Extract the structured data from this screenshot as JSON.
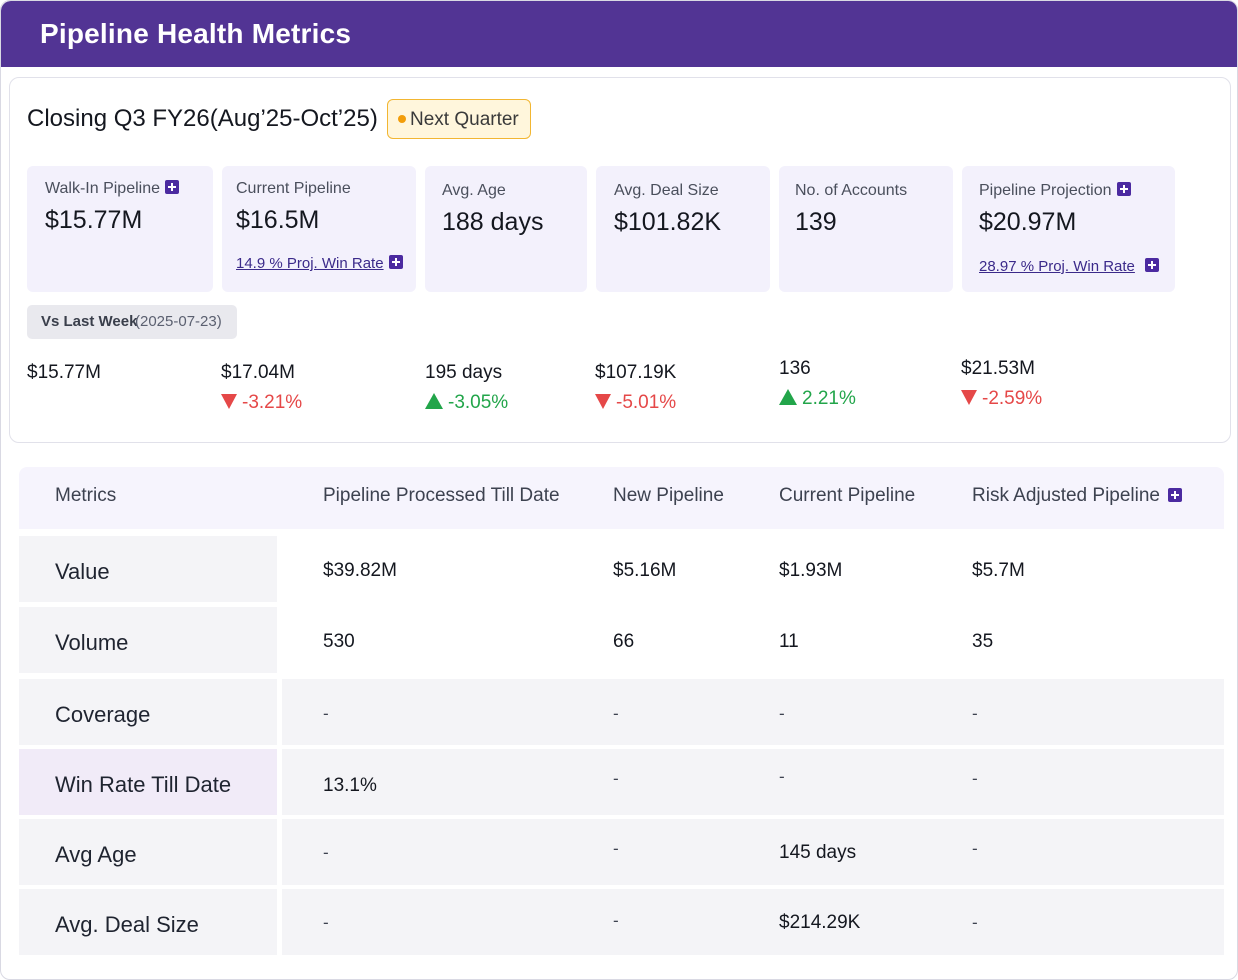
{
  "header": {
    "title": "Pipeline Health Metrics"
  },
  "period": {
    "title": "Closing Q3 FY26(Aug’25-Oct’25)",
    "badge": "Next Quarter"
  },
  "cards": [
    {
      "title": "Walk-In Pipeline",
      "value": "$15.77M"
    },
    {
      "title": "Current Pipeline",
      "value": "$16.5M",
      "sub": "14.9 %  Proj. Win Rate"
    },
    {
      "title": "Avg. Age",
      "value": "188 days"
    },
    {
      "title": "Avg. Deal Size",
      "value": "$101.82K"
    },
    {
      "title": "No. of Accounts",
      "value": "139"
    },
    {
      "title": "Pipeline Projection",
      "value": "$20.97M",
      "sub": "28.97 % Proj. Win Rate"
    }
  ],
  "comparison": {
    "label": "Vs Last Week",
    "date": "(2025-07-23)",
    "items": [
      {
        "value": "$15.77M"
      },
      {
        "value": "$17.04M",
        "change": "-3.21%",
        "direction": "down"
      },
      {
        "value": "195 days",
        "change": "-3.05%",
        "direction": "up"
      },
      {
        "value": "$107.19K",
        "change": "-5.01%",
        "direction": "down"
      },
      {
        "value": "136",
        "change": "2.21%",
        "direction": "up"
      },
      {
        "value": "$21.53M",
        "change": "-2.59%",
        "direction": "down"
      }
    ]
  },
  "table": {
    "columns": [
      "Metrics",
      "Pipeline Processed Till Date",
      "New Pipeline",
      "Current Pipeline",
      "Risk Adjusted Pipeline"
    ],
    "rows": [
      {
        "label": "Value",
        "cells": [
          "$39.82M",
          "$5.16M",
          "$1.93M",
          "$5.7M"
        ]
      },
      {
        "label": "Volume",
        "cells": [
          "530",
          "66",
          "11",
          "35"
        ]
      },
      {
        "label": "Coverage",
        "cells": [
          "-",
          "-",
          "-",
          "-"
        ]
      },
      {
        "label": "Win Rate Till Date",
        "cells": [
          "13.1%",
          "-",
          "-",
          "-"
        ]
      },
      {
        "label": "Avg Age",
        "cells": [
          "-",
          "-",
          "145 days",
          "-"
        ]
      },
      {
        "label": "Avg. Deal Size",
        "cells": [
          "-",
          "-",
          "$214.29K",
          "-"
        ]
      }
    ]
  },
  "colors": {
    "header": "#523494",
    "card": "#f3f1fc",
    "down": "#e54848",
    "up": "#22a54a",
    "badge_border": "#f2b632"
  },
  "icons": {
    "info": "plus-square-icon",
    "down": "triangle-down-icon",
    "up": "triangle-up-icon",
    "badge": "dot-icon"
  }
}
